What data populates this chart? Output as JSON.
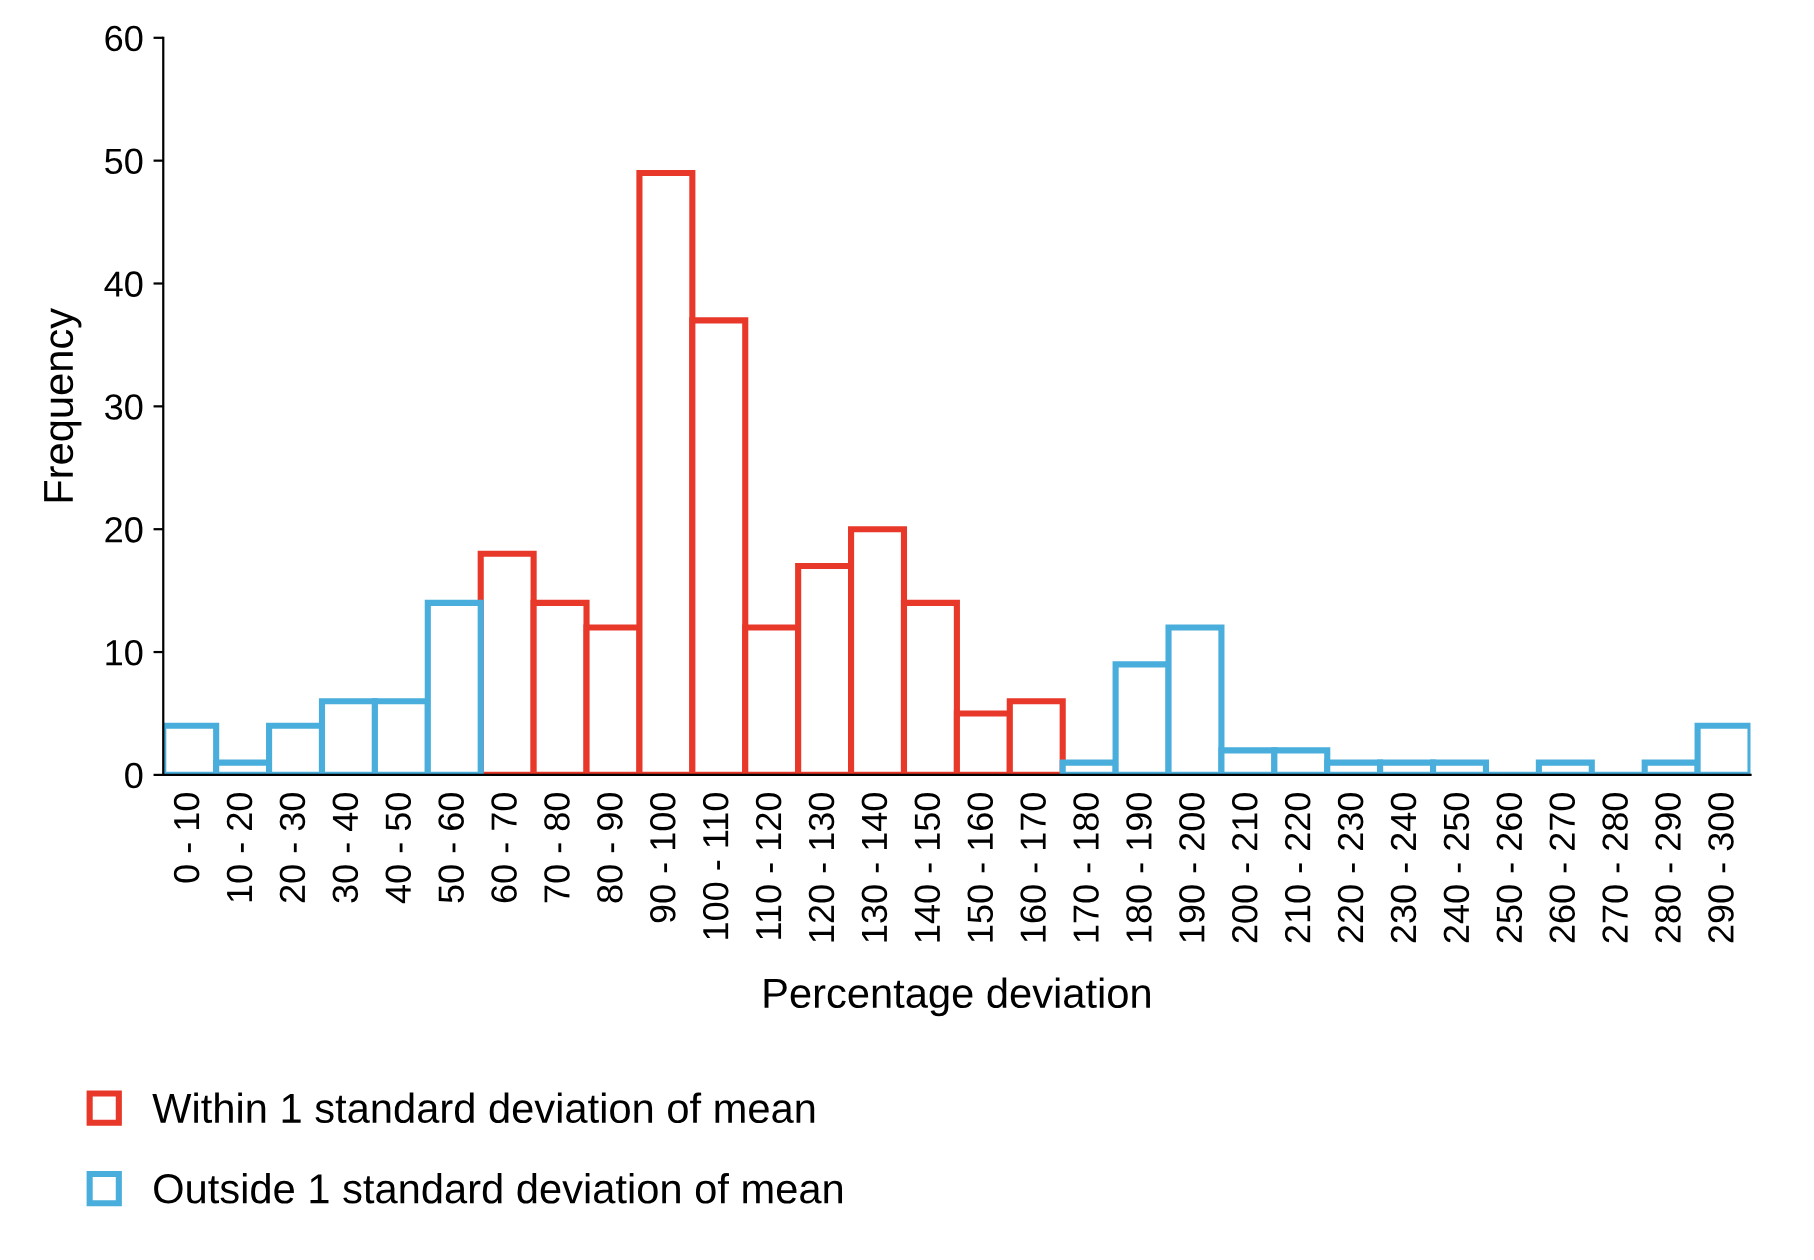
{
  "chart_data": {
    "type": "bar",
    "xlabel": "Percentage deviation",
    "ylabel": "Frequency",
    "categories": [
      "0 - 10",
      "10 - 20",
      "20 - 30",
      "30 - 40",
      "40 - 50",
      "50 - 60",
      "60 - 70",
      "70 - 80",
      "80 - 90",
      "90 - 100",
      "100 - 110",
      "110 - 120",
      "120 - 130",
      "130 - 140",
      "140 - 150",
      "150 - 160",
      "160 - 170",
      "170 - 180",
      "180 - 190",
      "190 - 200",
      "200 - 210",
      "210 - 220",
      "220 - 230",
      "230 - 240",
      "240 - 250",
      "250 - 260",
      "260 - 270",
      "270 - 280",
      "280 - 290",
      "290 - 300"
    ],
    "series": [
      {
        "name": "Within 1 standard deviation of mean",
        "color": "#e8382a",
        "values": [
          null,
          null,
          null,
          null,
          null,
          null,
          18,
          14,
          12,
          49,
          37,
          12,
          17,
          20,
          14,
          5,
          6,
          null,
          null,
          null,
          null,
          null,
          null,
          null,
          null,
          null,
          null,
          null,
          null,
          null
        ]
      },
      {
        "name": "Outside 1 standard deviation of mean",
        "color": "#4aaedc",
        "values": [
          4,
          1,
          4,
          6,
          6,
          14,
          null,
          null,
          null,
          null,
          null,
          null,
          null,
          null,
          null,
          null,
          null,
          1,
          9,
          12,
          2,
          2,
          1,
          1,
          1,
          0,
          1,
          0,
          1,
          4
        ]
      }
    ],
    "ylim": [
      0,
      60
    ],
    "yticks": [
      0,
      10,
      20,
      30,
      40,
      50,
      60
    ],
    "grid": false,
    "legend": "bottom left"
  }
}
